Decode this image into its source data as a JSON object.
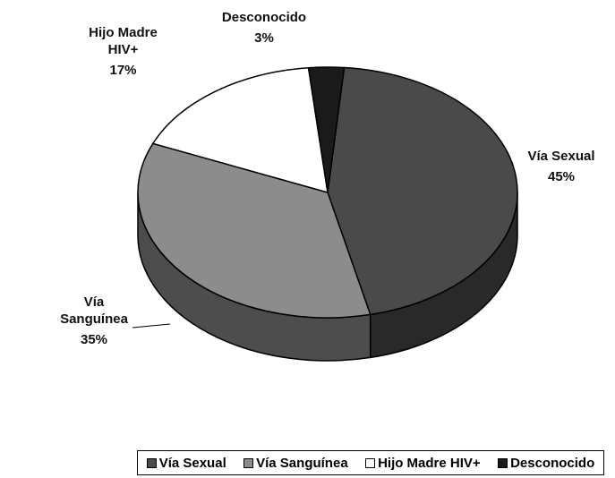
{
  "chart_data": {
    "type": "pie",
    "categories": [
      "Vía Sexual",
      "Vía Sanguínea",
      "Hijo Madre HIV+",
      "Desconocido"
    ],
    "values": [
      45,
      35,
      17,
      3
    ],
    "value_labels": [
      "45%",
      "35%",
      "17%",
      "3%"
    ],
    "colors": [
      "#4a4a4a",
      "#8c8c8c",
      "#ffffff",
      "#1a1a1a"
    ],
    "legend": "bottom"
  }
}
